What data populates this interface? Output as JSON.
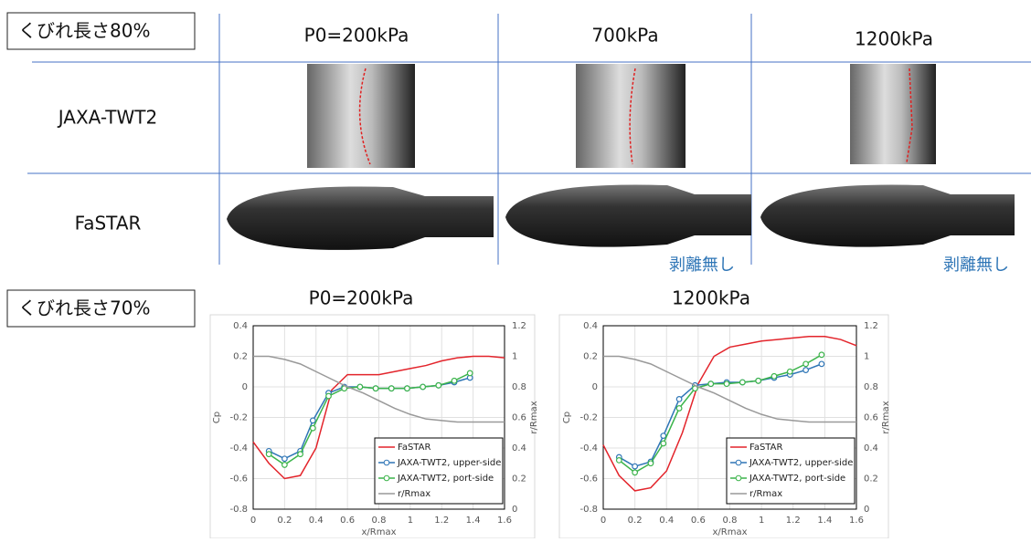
{
  "slide": {
    "label_top": "くびれ長さ80%",
    "columns": [
      "P0=200kPa",
      "700kPa",
      "1200kPa"
    ],
    "rows": [
      "JAXA-TWT2",
      "FaSTAR"
    ],
    "notes": [
      "剥離無し",
      "剥離無し"
    ],
    "label_bottom": "くびれ長さ70%"
  },
  "chart_data": [
    {
      "type": "line",
      "title": "P0=200kPa",
      "x_label": "x/Rmax",
      "y_label": "Cp",
      "y2_label": "r/Rmax",
      "xlim": [
        0,
        1.6
      ],
      "xticks": [
        0,
        0.2,
        0.4,
        0.6,
        0.8,
        1,
        1.2,
        1.4,
        1.6
      ],
      "ylim": [
        -0.8,
        0.4
      ],
      "yticks": [
        -0.8,
        -0.6,
        -0.4,
        -0.2,
        0,
        0.2,
        0.4
      ],
      "y2lim": [
        0,
        1.2
      ],
      "y2ticks": [
        0,
        0.2,
        0.4,
        0.6,
        0.8,
        1,
        1.2
      ],
      "grid": true,
      "legend": "lower right",
      "x": [
        0,
        0.1,
        0.2,
        0.3,
        0.4,
        0.5,
        0.6,
        0.7,
        0.8,
        0.9,
        1,
        1.1,
        1.2,
        1.3,
        1.4,
        1.5,
        1.6
      ],
      "series": [
        {
          "name": "FaSTAR",
          "color": "#e3242b",
          "values": [
            -0.36,
            -0.5,
            -0.6,
            -0.58,
            -0.4,
            -0.02,
            0.08,
            0.08,
            0.08,
            0.1,
            0.12,
            0.14,
            0.17,
            0.19,
            0.2,
            0.2,
            0.19
          ]
        },
        {
          "name": "JAXA-TWT2, upper-side",
          "color": "#2e75b6",
          "markers": true,
          "x": [
            0.1,
            0.2,
            0.3,
            0.38,
            0.48,
            0.58,
            0.68,
            0.78,
            0.88,
            0.98,
            1.08,
            1.18,
            1.28,
            1.38
          ],
          "values": [
            -0.42,
            -0.47,
            -0.42,
            -0.22,
            -0.04,
            0,
            0,
            -0.01,
            -0.01,
            -0.01,
            0,
            0.01,
            0.03,
            0.06
          ]
        },
        {
          "name": "JAXA-TWT2, port-side",
          "color": "#3cb44b",
          "markers": true,
          "x": [
            0.1,
            0.2,
            0.3,
            0.38,
            0.48,
            0.58,
            0.68,
            0.78,
            0.88,
            0.98,
            1.08,
            1.18,
            1.28,
            1.38
          ],
          "values": [
            -0.44,
            -0.51,
            -0.44,
            -0.27,
            -0.06,
            -0.01,
            0,
            -0.01,
            -0.01,
            -0.01,
            0,
            0.01,
            0.04,
            0.09
          ]
        },
        {
          "name": "r/Rmax",
          "color": "#999999",
          "axis": "y2",
          "values": [
            1,
            1,
            0.98,
            0.95,
            0.9,
            0.85,
            0.8,
            0.76,
            0.71,
            0.66,
            0.62,
            0.59,
            0.58,
            0.57,
            0.57,
            0.57,
            0.57
          ]
        }
      ]
    },
    {
      "type": "line",
      "title": "1200kPa",
      "x_label": "x/Rmax",
      "y_label": "Cp",
      "y2_label": "r/Rmax",
      "xlim": [
        0,
        1.6
      ],
      "xticks": [
        0,
        0.2,
        0.4,
        0.6,
        0.8,
        1,
        1.2,
        1.4,
        1.6
      ],
      "ylim": [
        -0.8,
        0.4
      ],
      "yticks": [
        -0.8,
        -0.6,
        -0.4,
        -0.2,
        0,
        0.2,
        0.4
      ],
      "y2lim": [
        0,
        1.2
      ],
      "y2ticks": [
        0,
        0.2,
        0.4,
        0.6,
        0.8,
        1,
        1.2
      ],
      "grid": true,
      "legend": "lower right",
      "x": [
        0,
        0.1,
        0.2,
        0.3,
        0.4,
        0.5,
        0.6,
        0.7,
        0.8,
        0.9,
        1,
        1.1,
        1.2,
        1.3,
        1.4,
        1.5,
        1.6
      ],
      "series": [
        {
          "name": "FaSTAR",
          "color": "#e3242b",
          "values": [
            -0.38,
            -0.58,
            -0.68,
            -0.66,
            -0.55,
            -0.3,
            0.02,
            0.2,
            0.26,
            0.28,
            0.3,
            0.31,
            0.32,
            0.33,
            0.33,
            0.31,
            0.27
          ]
        },
        {
          "name": "JAXA-TWT2, upper-side",
          "color": "#2e75b6",
          "markers": true,
          "x": [
            0.1,
            0.2,
            0.3,
            0.38,
            0.48,
            0.58,
            0.68,
            0.78,
            0.88,
            0.98,
            1.08,
            1.18,
            1.28,
            1.38
          ],
          "values": [
            -0.46,
            -0.52,
            -0.49,
            -0.32,
            -0.08,
            0.01,
            0.02,
            0.03,
            0.03,
            0.04,
            0.06,
            0.08,
            0.11,
            0.15
          ]
        },
        {
          "name": "JAXA-TWT2, port-side",
          "color": "#3cb44b",
          "markers": true,
          "x": [
            0.1,
            0.2,
            0.3,
            0.38,
            0.48,
            0.58,
            0.68,
            0.78,
            0.88,
            0.98,
            1.08,
            1.18,
            1.28,
            1.38
          ],
          "values": [
            -0.48,
            -0.56,
            -0.5,
            -0.37,
            -0.14,
            -0.01,
            0.02,
            0.02,
            0.03,
            0.04,
            0.07,
            0.1,
            0.15,
            0.21
          ]
        },
        {
          "name": "r/Rmax",
          "color": "#999999",
          "axis": "y2",
          "values": [
            1,
            1,
            0.98,
            0.95,
            0.9,
            0.85,
            0.8,
            0.76,
            0.71,
            0.66,
            0.62,
            0.59,
            0.58,
            0.57,
            0.57,
            0.57,
            0.57
          ]
        }
      ]
    }
  ]
}
